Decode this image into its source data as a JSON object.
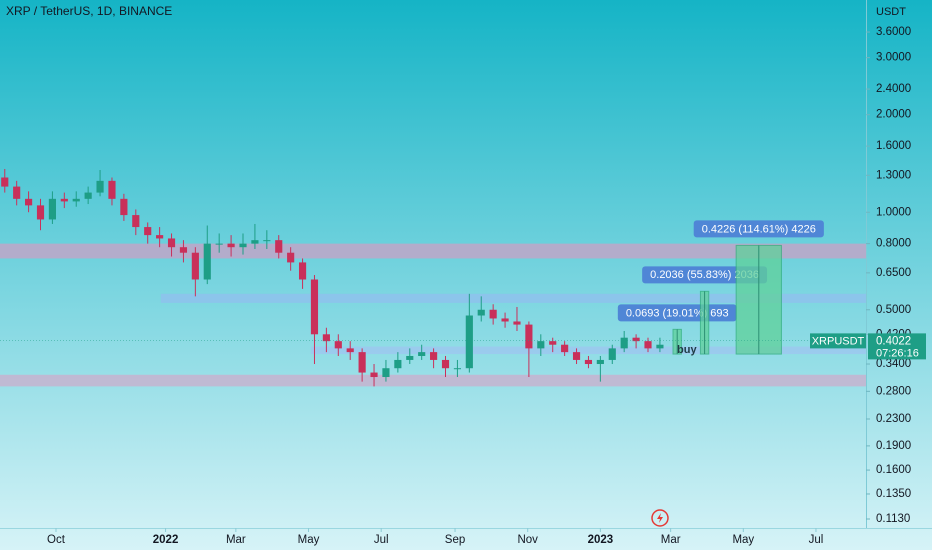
{
  "chart_data": {
    "type": "candlestick",
    "title": "XRP / TetherUS, 1D, BINANCE",
    "y_label": "USDT",
    "log_scale": true,
    "xlim": [
      -139,
      588
    ],
    "ylim": [
      0.106,
      4.52
    ],
    "xticks": [
      {
        "value": -92,
        "label": "Oct"
      },
      {
        "value": 0,
        "label": "2022"
      },
      {
        "value": 59,
        "label": "Mar"
      },
      {
        "value": 120,
        "label": "May"
      },
      {
        "value": 181,
        "label": "Jul"
      },
      {
        "value": 243,
        "label": "Sep"
      },
      {
        "value": 304,
        "label": "Nov"
      },
      {
        "value": 365,
        "label": "2023"
      },
      {
        "value": 424,
        "label": "Mar"
      },
      {
        "value": 485,
        "label": "May"
      },
      {
        "value": 546,
        "label": "Jul"
      }
    ],
    "yticks": [
      {
        "value": 3.6,
        "label": "3.6000"
      },
      {
        "value": 3,
        "label": "3.0000"
      },
      {
        "value": 2.4,
        "label": "2.4000"
      },
      {
        "value": 2,
        "label": "2.0000"
      },
      {
        "value": 1.6,
        "label": "1.6000"
      },
      {
        "value": 1.3,
        "label": "1.3000"
      },
      {
        "value": 1,
        "label": "1.0000"
      },
      {
        "value": 0.8,
        "label": "0.8000"
      },
      {
        "value": 0.65,
        "label": "0.6500"
      },
      {
        "value": 0.5,
        "label": "0.5000"
      },
      {
        "value": 0.42,
        "label": "0.4200"
      },
      {
        "value": 0.34,
        "label": "0.3400"
      },
      {
        "value": 0.28,
        "label": "0.2800"
      },
      {
        "value": 0.23,
        "label": "0.2300"
      },
      {
        "value": 0.19,
        "label": "0.1900"
      },
      {
        "value": 0.16,
        "label": "0.1600"
      },
      {
        "value": 0.135,
        "label": "0.1350"
      },
      {
        "value": 0.113,
        "label": "0.1130"
      }
    ],
    "x": [
      -135,
      -125,
      -115,
      -105,
      -95,
      -85,
      -75,
      -65,
      -55,
      -45,
      -35,
      -25,
      -15,
      -5,
      5,
      15,
      25,
      35,
      45,
      55,
      65,
      75,
      85,
      95,
      105,
      115,
      125,
      135,
      145,
      155,
      165,
      175,
      185,
      195,
      205,
      215,
      225,
      235,
      245,
      255,
      265,
      275,
      285,
      295,
      305,
      315,
      325,
      335,
      345,
      355,
      365,
      375,
      385,
      395,
      405,
      415
    ],
    "open": [
      1.28,
      1.2,
      1.1,
      1.05,
      0.95,
      1.1,
      1.08,
      1.1,
      1.15,
      1.25,
      1.1,
      0.98,
      0.9,
      0.85,
      0.83,
      0.78,
      0.75,
      0.62,
      0.8,
      0.8,
      0.78,
      0.8,
      0.82,
      0.82,
      0.75,
      0.7,
      0.62,
      0.42,
      0.4,
      0.38,
      0.37,
      0.32,
      0.31,
      0.33,
      0.35,
      0.36,
      0.37,
      0.35,
      0.33,
      0.33,
      0.48,
      0.5,
      0.47,
      0.46,
      0.45,
      0.38,
      0.4,
      0.39,
      0.37,
      0.35,
      0.34,
      0.35,
      0.38,
      0.41,
      0.4,
      0.38
    ],
    "high": [
      1.36,
      1.25,
      1.16,
      1.1,
      1.16,
      1.15,
      1.16,
      1.2,
      1.35,
      1.28,
      1.14,
      1.02,
      0.93,
      0.9,
      0.86,
      0.82,
      0.78,
      0.91,
      0.86,
      0.85,
      0.86,
      0.92,
      0.88,
      0.85,
      0.78,
      0.72,
      0.64,
      0.44,
      0.42,
      0.4,
      0.38,
      0.34,
      0.35,
      0.37,
      0.38,
      0.39,
      0.38,
      0.36,
      0.35,
      0.56,
      0.55,
      0.52,
      0.49,
      0.51,
      0.46,
      0.42,
      0.41,
      0.4,
      0.38,
      0.36,
      0.36,
      0.39,
      0.43,
      0.42,
      0.41,
      0.41
    ],
    "low": [
      1.15,
      1.05,
      1.0,
      0.88,
      0.92,
      1.03,
      1.04,
      1.06,
      1.12,
      1.05,
      0.94,
      0.85,
      0.8,
      0.78,
      0.73,
      0.7,
      0.55,
      0.6,
      0.75,
      0.73,
      0.74,
      0.77,
      0.77,
      0.72,
      0.66,
      0.58,
      0.34,
      0.37,
      0.36,
      0.35,
      0.3,
      0.29,
      0.3,
      0.32,
      0.34,
      0.35,
      0.33,
      0.31,
      0.31,
      0.32,
      0.46,
      0.45,
      0.44,
      0.43,
      0.31,
      0.36,
      0.37,
      0.36,
      0.34,
      0.33,
      0.3,
      0.34,
      0.37,
      0.38,
      0.37,
      0.37
    ],
    "close": [
      1.2,
      1.1,
      1.05,
      0.95,
      1.1,
      1.08,
      1.1,
      1.15,
      1.25,
      1.1,
      0.98,
      0.9,
      0.85,
      0.83,
      0.78,
      0.75,
      0.62,
      0.8,
      0.8,
      0.78,
      0.8,
      0.82,
      0.82,
      0.75,
      0.7,
      0.62,
      0.42,
      0.4,
      0.38,
      0.37,
      0.32,
      0.31,
      0.33,
      0.35,
      0.36,
      0.37,
      0.35,
      0.33,
      0.33,
      0.48,
      0.5,
      0.47,
      0.46,
      0.45,
      0.38,
      0.4,
      0.39,
      0.37,
      0.35,
      0.34,
      0.35,
      0.38,
      0.41,
      0.4,
      0.38,
      0.39
    ],
    "up_color": "#1e9e86",
    "down_color": "#c9305a",
    "zones": [
      {
        "from": 0.72,
        "to": 0.8,
        "start": -139,
        "color": "#c0a6c8"
      },
      {
        "from": 0.525,
        "to": 0.56,
        "start": -4,
        "color": "#8ec2ec"
      },
      {
        "from": 0.365,
        "to": 0.385,
        "start": 122,
        "color": "#9cc8ef"
      },
      {
        "from": 0.29,
        "to": 0.315,
        "start": -139,
        "color": "#c7b3cf"
      }
    ],
    "measures": [
      {
        "start": 426,
        "end": 433,
        "low": 0.365,
        "high": 0.435,
        "label": "0.0693 (19.01%) 693",
        "note": "buy"
      },
      {
        "start": 449,
        "end": 456,
        "low": 0.365,
        "high": 0.57,
        "label": "0.2036 (55.83%) 2036"
      },
      {
        "start": 479,
        "end": 517,
        "low": 0.365,
        "high": 0.79,
        "label": "0.4226 (114.61%) 4226"
      }
    ],
    "last_price": {
      "symbol": "XRPUSDT",
      "value": 0.4022,
      "countdown": "07:26:16"
    }
  }
}
